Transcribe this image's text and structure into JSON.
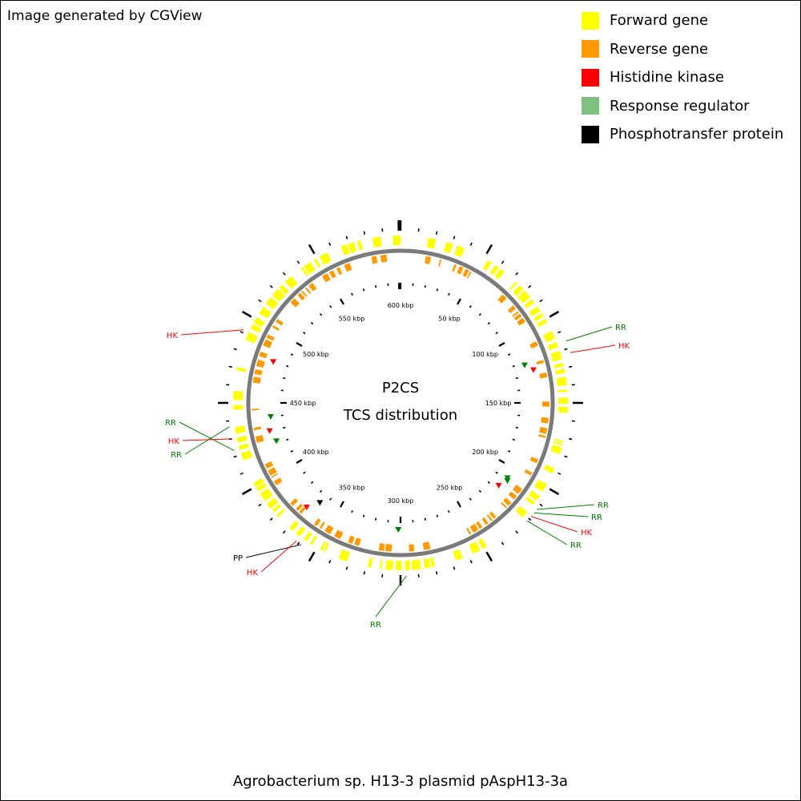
{
  "header": {
    "credit": "Image generated by CGView"
  },
  "legend": [
    {
      "label": "Forward gene",
      "color": "#ffff00"
    },
    {
      "label": "Reverse gene",
      "color": "#ff9900"
    },
    {
      "label": "Histidine kinase",
      "color": "#ff0000"
    },
    {
      "label": "Response regulator",
      "color": "#80c080"
    },
    {
      "label": "Phosphotransfer protein",
      "color": "#000000"
    }
  ],
  "map": {
    "center_line1": "P2CS",
    "center_line2": "TCS distribution",
    "footer_title": "Agrobacterium sp. H13-3 plasmid pAspH13-3a",
    "tick_labels": [
      "600 kbp",
      "50 kbp",
      "100 kbp",
      "150 kbp",
      "200 kbp",
      "250 kbp",
      "300 kbp",
      "350 kbp",
      "400 kbp",
      "450 kbp",
      "500 kbp",
      "550 kbp"
    ],
    "callouts": [
      {
        "label": "RR",
        "type": "RR",
        "color": "#008000"
      },
      {
        "label": "HK",
        "type": "HK",
        "color": "#ff0000"
      },
      {
        "label": "RR",
        "type": "RR",
        "color": "#008000"
      },
      {
        "label": "RR",
        "type": "RR",
        "color": "#008000"
      },
      {
        "label": "HK",
        "type": "HK",
        "color": "#ff0000"
      },
      {
        "label": "RR",
        "type": "RR",
        "color": "#008000"
      },
      {
        "label": "RR",
        "type": "RR",
        "color": "#008000"
      },
      {
        "label": "PP",
        "type": "PP",
        "color": "#000000"
      },
      {
        "label": "HK",
        "type": "HK",
        "color": "#ff0000"
      },
      {
        "label": "RR",
        "type": "RR",
        "color": "#008000"
      },
      {
        "label": "HK",
        "type": "HK",
        "color": "#ff0000"
      },
      {
        "label": "RR",
        "type": "RR",
        "color": "#008000"
      },
      {
        "label": "HK",
        "type": "HK",
        "color": "#ff0000"
      }
    ]
  }
}
